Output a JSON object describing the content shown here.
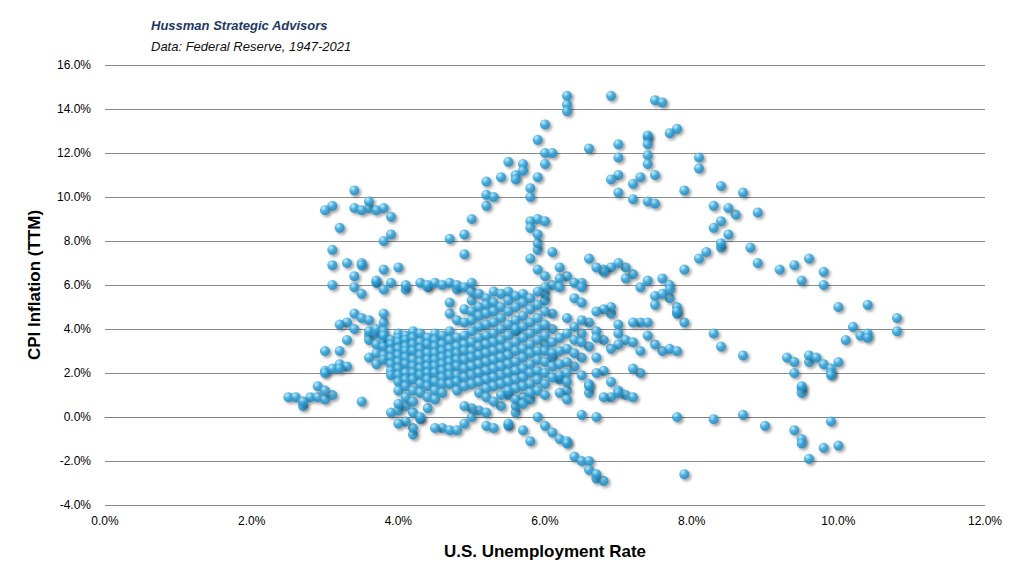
{
  "chart_data": {
    "type": "scatter",
    "title": "Hussman Strategic Advisors",
    "subtitle": "Data: Federal Reserve, 1947-2021",
    "x_label": "U.S. Unemployment Rate",
    "y_label": "CPI Inflation (TTM)",
    "color": "#2fa4dc",
    "marker": "circle",
    "grid": true,
    "xlim": [
      0,
      12
    ],
    "ylim": [
      -4,
      16
    ],
    "xticks": [
      {
        "value": 0,
        "label": "0.0%"
      },
      {
        "value": 2,
        "label": "2.0%"
      },
      {
        "value": 4,
        "label": "4.0%"
      },
      {
        "value": 6,
        "label": "6.0%"
      },
      {
        "value": 8,
        "label": "8.0%"
      },
      {
        "value": 10,
        "label": "10.0%"
      },
      {
        "value": 12,
        "label": "12.0%"
      }
    ],
    "yticks": [
      {
        "value": -4,
        "label": "-4.0%"
      },
      {
        "value": -2,
        "label": "-2.0%"
      },
      {
        "value": 0,
        "label": "0.0%"
      },
      {
        "value": 2,
        "label": "2.0%"
      },
      {
        "value": 4,
        "label": "4.0%"
      },
      {
        "value": 6,
        "label": "6.0%"
      },
      {
        "value": 8,
        "label": "8.0%"
      },
      {
        "value": 10,
        "label": "10.0%"
      },
      {
        "value": 12,
        "label": "12.0%"
      },
      {
        "value": 14,
        "label": "14.0%"
      },
      {
        "value": 16,
        "label": "16.0%"
      }
    ],
    "x": [
      2.5,
      2.6,
      2.7,
      2.8,
      2.7,
      2.9,
      2.9,
      3.0,
      3.0,
      3.0,
      3.1,
      3.1,
      3.2,
      3.3,
      3.2,
      3.0,
      3.0,
      3.1,
      3.2,
      3.4,
      3.4,
      3.5,
      3.6,
      3.6,
      3.7,
      3.8,
      3.9,
      3.8,
      3.9,
      3.1,
      3.1,
      3.1,
      3.3,
      3.5,
      3.5,
      3.4,
      3.4,
      3.5,
      3.3,
      3.2,
      3.0,
      3.2,
      3.3,
      3.4,
      3.5,
      3.4,
      3.6,
      3.7,
      3.7,
      3.9,
      3.8,
      3.8,
      3.8,
      4.0,
      3.8,
      3.5,
      4.7,
      4.9,
      4.9,
      5.0,
      5.2,
      5.2,
      5.3,
      5.2,
      5.4,
      5.5,
      5.6,
      5.7,
      5.7,
      5.6,
      5.8,
      5.8,
      5.9,
      5.9,
      6.0,
      6.0,
      6.1,
      6.0,
      6.3,
      6.3,
      6.3,
      6.9,
      6.6,
      7.0,
      7.0,
      7.0,
      6.9,
      7.0,
      7.2,
      7.2,
      7.3,
      7.4,
      7.4,
      7.4,
      7.5,
      7.6,
      7.7,
      7.8,
      7.4,
      7.4,
      7.5,
      7.4,
      7.5,
      7.9,
      8.1,
      8.1,
      8.4,
      8.6,
      8.7,
      8.9,
      8.3,
      8.5,
      8.4,
      8.3,
      8.2,
      8.1,
      8.5,
      8.4,
      8.4,
      8.8,
      8.9,
      9.2,
      9.4,
      9.5,
      9.6,
      9.8,
      9.8,
      10.0,
      10.1,
      10.2,
      10.3,
      10.4,
      10.4,
      10.4,
      10.8,
      10.8,
      10.0,
      9.3,
      9.4,
      9.6,
      9.5,
      9.5,
      9.6,
      9.7,
      9.8,
      9.9,
      9.9,
      9.5,
      9.4,
      9.9,
      9.4,
      9.5,
      9.5,
      9.6,
      9.8,
      10.0,
      9.9,
      9.0,
      8.3,
      8.7,
      7.8,
      7.9,
      8.7,
      8.4,
      8.3,
      7.9,
      7.8,
      7.7,
      7.5,
      7.5,
      7.6,
      7.7,
      7.6,
      7.9,
      7.7,
      7.3,
      7.4,
      7.2,
      7.1,
      6.9,
      6.8,
      6.8,
      7.1,
      7.0,
      6.6,
      6.7,
      6.5,
      6.3,
      6.2,
      6.1,
      6.4,
      7.6,
      7.7,
      7.8,
      7.8,
      7.8,
      7.5,
      7.4,
      7.3,
      7.4,
      7.2,
      7.0,
      7.0,
      7.1,
      7.2,
      7.3,
      7.0,
      6.9,
      6.8,
      6.6,
      6.8,
      6.9,
      7.0,
      7.1,
      7.3,
      7.2,
      6.9,
      7.0,
      7.2,
      6.9,
      6.9,
      6.8,
      6.7,
      6.6,
      6.5,
      6.5,
      6.4,
      6.5,
      6.6,
      6.6,
      6.6,
      6.7,
      6.3,
      6.2,
      6.1,
      6.0,
      6.1,
      6.1,
      6.0,
      6.0,
      6.2,
      6.2,
      5.8,
      5.9,
      5.9,
      5.9,
      5.8,
      5.9,
      5.8,
      5.9,
      6.0,
      6.1,
      6.0,
      6.0,
      6.4,
      6.5,
      5.5,
      5.7,
      5.8,
      5.9,
      6.0,
      6.1,
      6.2,
      6.3,
      6.4,
      6.5,
      6.6,
      6.6,
      6.7,
      6.8,
      6.7,
      6.3,
      5.2,
      5.3,
      5.1,
      4.6,
      4.7,
      4.5,
      4.2,
      4.2,
      4.3,
      4.1,
      4.0,
      3.9,
      4.0,
      4.1,
      4.2,
      4.4,
      4.3,
      4.8,
      4.9,
      5.0,
      5.0,
      5.2,
      5.4,
      5.5,
      5.6,
      5.6,
      5.5,
      5.7,
      5.8,
      6.5,
      6.7,
      6.8,
      6.2,
      6.3,
      3.6,
      3.6,
      3.6,
      3.6,
      3.7,
      3.7,
      3.7,
      3.7,
      3.7,
      3.8,
      3.8,
      3.8,
      3.8,
      3.8,
      3.8,
      3.8,
      3.9,
      3.9,
      3.9,
      3.9,
      3.9,
      3.9,
      3.9,
      4.0,
      4.0,
      4.0,
      4.0,
      4.0,
      4.0,
      4.0,
      4.0,
      4.0,
      4.0,
      4.0,
      4.1,
      4.1,
      4.1,
      4.1,
      4.1,
      4.1,
      4.1,
      4.1,
      4.1,
      4.1,
      4.1,
      4.1,
      4.2,
      4.2,
      4.2,
      4.2,
      4.2,
      4.2,
      4.2,
      4.2,
      4.2,
      4.2,
      4.3,
      4.3,
      4.3,
      4.3,
      4.3,
      4.3,
      4.3,
      4.3,
      4.3,
      4.3,
      4.4,
      4.4,
      4.4,
      4.4,
      4.4,
      4.4,
      4.4,
      4.4,
      4.4,
      4.4,
      4.4,
      4.5,
      4.5,
      4.5,
      4.5,
      4.5,
      4.5,
      4.5,
      4.5,
      4.5,
      4.5,
      4.5,
      4.6,
      4.6,
      4.6,
      4.6,
      4.6,
      4.6,
      4.6,
      4.6,
      4.6,
      4.6,
      4.7,
      4.7,
      4.7,
      4.7,
      4.7,
      4.7,
      4.7,
      4.7,
      4.7,
      4.7,
      4.7,
      4.8,
      4.8,
      4.8,
      4.8,
      4.8,
      4.8,
      4.8,
      4.8,
      4.8,
      4.8,
      4.8,
      4.9,
      4.9,
      4.9,
      4.9,
      4.9,
      4.9,
      4.9,
      4.9,
      4.9,
      4.9,
      4.9,
      5.0,
      5.0,
      5.0,
      5.0,
      5.0,
      5.0,
      5.0,
      5.0,
      5.0,
      5.0,
      5.0,
      5.0,
      5.1,
      5.1,
      5.1,
      5.1,
      5.1,
      5.1,
      5.1,
      5.1,
      5.1,
      5.1,
      5.1,
      5.2,
      5.2,
      5.2,
      5.2,
      5.2,
      5.2,
      5.2,
      5.2,
      5.2,
      5.2,
      5.2,
      5.2,
      5.3,
      5.3,
      5.3,
      5.3,
      5.3,
      5.3,
      5.3,
      5.3,
      5.3,
      5.3,
      5.3,
      5.3,
      5.4,
      5.4,
      5.4,
      5.4,
      5.4,
      5.4,
      5.4,
      5.4,
      5.4,
      5.4,
      5.4,
      5.5,
      5.5,
      5.5,
      5.5,
      5.5,
      5.5,
      5.5,
      5.5,
      5.5,
      5.5,
      5.5,
      5.6,
      5.6,
      5.6,
      5.6,
      5.6,
      5.6,
      5.6,
      5.6,
      5.6,
      5.6,
      5.6,
      5.6,
      5.7,
      5.7,
      5.7,
      5.7,
      5.7,
      5.7,
      5.7,
      5.7,
      5.7,
      5.7,
      5.7,
      5.8,
      5.8,
      5.8,
      5.8,
      5.8,
      5.8,
      5.8,
      5.8,
      5.8,
      5.8,
      5.9,
      5.9,
      5.9,
      5.9,
      5.9,
      5.9,
      5.9,
      5.9,
      5.9,
      5.9,
      6.0,
      6.0,
      6.0,
      6.0,
      6.0,
      6.0,
      6.0,
      6.0,
      6.1,
      6.1,
      6.1,
      6.1,
      6.2,
      6.2,
      6.2,
      6.2,
      6.3,
      6.3,
      6.3,
      6.3,
      6.3,
      6.3,
      6.4,
      6.4,
      6.4,
      6.5,
      6.5,
      6.5,
      6.7,
      6.7,
      6.7
    ],
    "values": [
      0.9,
      0.9,
      0.5,
      0.9,
      0.7,
      0.9,
      1.4,
      0.8,
      2.1,
      2.0,
      2.2,
      1.0,
      2.4,
      2.3,
      2.2,
      1.2,
      9.4,
      9.6,
      8.6,
      10.3,
      9.5,
      9.4,
      9.5,
      9.8,
      9.4,
      9.5,
      9.1,
      8.0,
      8.3,
      7.6,
      6.9,
      6.0,
      7.0,
      7.0,
      6.9,
      6.4,
      5.9,
      5.6,
      4.3,
      4.2,
      3.0,
      3.0,
      3.5,
      4.7,
      4.5,
      4.0,
      4.4,
      6.1,
      6.2,
      6.1,
      5.8,
      4.3,
      4.7,
      6.8,
      6.7,
      0.7,
      8.1,
      8.3,
      7.4,
      9.0,
      9.6,
      10.1,
      10.0,
      10.7,
      10.9,
      11.6,
      11.0,
      11.5,
      11.2,
      10.8,
      10.4,
      10.0,
      10.9,
      12.6,
      12.0,
      13.3,
      12.0,
      11.5,
      14.6,
      14.2,
      13.9,
      14.6,
      12.2,
      12.4,
      11.8,
      11.0,
      10.8,
      10.2,
      10.6,
      9.9,
      10.9,
      12.7,
      12.8,
      12.4,
      14.4,
      14.3,
      12.9,
      13.1,
      11.9,
      11.5,
      11.0,
      9.8,
      9.7,
      10.3,
      11.8,
      11.3,
      10.5,
      9.2,
      10.2,
      9.3,
      9.6,
      9.5,
      8.9,
      8.6,
      7.5,
      7.2,
      8.3,
      7.7,
      7.9,
      7.7,
      7.0,
      6.7,
      6.9,
      6.2,
      7.2,
      6.6,
      6.0,
      5.0,
      3.5,
      4.1,
      3.7,
      5.1,
      3.8,
      3.6,
      4.5,
      3.9,
      2.5,
      2.7,
      2.5,
      2.5,
      1.3,
      1.1,
      2.8,
      2.7,
      2.4,
      2.2,
      2.0,
      1.4,
      2.0,
      1.9,
      -0.6,
      -1.0,
      -1.2,
      -1.9,
      -1.4,
      -1.3,
      -0.2,
      -0.4,
      -0.1,
      0.1,
      0.0,
      -2.6,
      2.8,
      3.2,
      3.8,
      4.3,
      5.0,
      5.4,
      5.5,
      5.1,
      6.3,
      6.0,
      5.6,
      6.7,
      5.8,
      5.9,
      6.2,
      6.5,
      6.3,
      6.8,
      6.7,
      6.6,
      6.8,
      7.0,
      7.2,
      6.8,
      6.1,
      6.4,
      6.3,
      6.0,
      6.1,
      3.0,
      3.1,
      4.7,
      4.8,
      3.0,
      3.3,
      3.7,
      4.3,
      4.3,
      4.3,
      4.2,
      3.8,
      3.5,
      3.4,
      3.0,
      3.3,
      3.1,
      3.5,
      3.2,
      2.1,
      1.6,
      1.2,
      1.0,
      2.0,
      2.2,
      0.9,
      1.1,
      0.9,
      4.7,
      5.0,
      4.9,
      4.8,
      4.3,
      3.8,
      2.7,
      2.3,
      1.9,
      1.5,
      1.1,
      1.4,
      2.0,
      1.2,
      1.7,
      2.7,
      3.3,
      4.0,
      4.7,
      5.3,
      5.6,
      5.9,
      6.8,
      7.2,
      6.7,
      7.6,
      7.9,
      8.9,
      9.0,
      8.6,
      8.3,
      8.9,
      7.5,
      6.4,
      5.9,
      5.4,
      5.9,
      -0.4,
      -0.6,
      -1.1,
      0.0,
      -0.4,
      -0.7,
      -1.0,
      -1.1,
      -1.8,
      -2.0,
      -2.0,
      -2.4,
      -2.8,
      -2.9,
      -2.6,
      -1.2,
      -0.4,
      -0.5,
      0.3,
      -0.5,
      -0.6,
      -0.5,
      -0.8,
      -0.5,
      -0.1,
      -0.2,
      -0.3,
      0.2,
      0.3,
      0.5,
      0.2,
      0.4,
      0.0,
      -0.6,
      -0.3,
      0.0,
      0.4,
      0.2,
      0.5,
      -0.3,
      0.2,
      0.5,
      1.0,
      0.9,
      0.8,
      0.1,
      0.0,
      0.9,
      1.1,
      0.8,
      3.7,
      3.5,
      2.7,
      3.9,
      3.8,
      3.3,
      2.9,
      2.4,
      4.0,
      3.9,
      3.6,
      3.4,
      3.2,
      2.8,
      2.6,
      3.7,
      3.5,
      3.3,
      3.0,
      2.7,
      2.4,
      2.1,
      1.9,
      3.8,
      3.6,
      3.4,
      3.1,
      2.8,
      2.5,
      2.2,
      1.9,
      1.6,
      1.2,
      0.6,
      3.7,
      3.5,
      3.2,
      3.0,
      2.7,
      2.4,
      2.0,
      1.7,
      1.4,
      0.9,
      5.8,
      6.0,
      3.9,
      3.6,
      3.3,
      3.0,
      2.6,
      2.3,
      2.0,
      1.7,
      1.2,
      0.7,
      3.8,
      3.4,
      3.1,
      2.8,
      2.5,
      2.2,
      1.9,
      1.5,
      1.1,
      6.1,
      3.6,
      3.3,
      2.9,
      2.6,
      2.3,
      2.0,
      1.7,
      1.4,
      0.9,
      5.9,
      6.0,
      3.8,
      3.5,
      3.2,
      2.9,
      2.6,
      2.3,
      2.0,
      1.6,
      1.2,
      0.8,
      6.1,
      3.7,
      3.3,
      3.0,
      2.7,
      2.4,
      2.1,
      1.8,
      1.5,
      1.1,
      6.0,
      3.9,
      3.5,
      3.1,
      2.8,
      2.5,
      2.2,
      1.9,
      1.5,
      4.7,
      5.2,
      6.1,
      4.4,
      3.6,
      3.2,
      2.9,
      2.6,
      2.3,
      1.9,
      1.6,
      1.2,
      5.8,
      6.0,
      4.9,
      4.3,
      3.7,
      3.3,
      3.0,
      2.6,
      2.2,
      1.8,
      1.4,
      0.5,
      5.9,
      5.3,
      4.8,
      4.4,
      3.9,
      3.4,
      3.0,
      2.7,
      2.3,
      1.9,
      1.5,
      5.7,
      6.1,
      5.6,
      5.0,
      4.6,
      4.1,
      3.6,
      3.2,
      2.8,
      2.4,
      2.0,
      1.6,
      1.1,
      5.4,
      5.1,
      4.7,
      4.2,
      3.7,
      3.3,
      2.9,
      2.5,
      2.1,
      1.7,
      1.3,
      0.9,
      5.7,
      5.2,
      4.8,
      4.3,
      3.8,
      3.4,
      3.0,
      2.6,
      2.2,
      1.8,
      1.4,
      0.7,
      5.6,
      5.0,
      4.5,
      4.0,
      3.5,
      3.1,
      2.7,
      2.3,
      1.9,
      1.5,
      1.0,
      5.7,
      5.3,
      4.8,
      4.2,
      3.7,
      3.2,
      2.8,
      2.4,
      2.0,
      1.6,
      1.2,
      5.5,
      5.0,
      4.4,
      3.9,
      3.4,
      3.0,
      2.5,
      2.1,
      1.7,
      1.3,
      0.8,
      4.0,
      5.6,
      5.2,
      4.6,
      4.1,
      3.6,
      3.1,
      2.7,
      2.2,
      1.8,
      1.4,
      0.6,
      5.4,
      4.9,
      4.3,
      3.8,
      3.3,
      2.9,
      2.4,
      2.0,
      1.5,
      1.1,
      5.7,
      5.1,
      4.5,
      4.0,
      3.5,
      3.0,
      2.6,
      2.1,
      1.7,
      1.2,
      4.8,
      4.2,
      3.7,
      3.0,
      2.5,
      2.0,
      1.5,
      1.0,
      3.4,
      2.9,
      2.3,
      1.8,
      3.6,
      3.0,
      2.4,
      1.9,
      4.5,
      3.8,
      3.1,
      2.5,
      2.0,
      1.6,
      4.1,
      3.5,
      2.9,
      5.2,
      4.4,
      3.4,
      3.9,
      3.6,
      2.7
    ]
  }
}
